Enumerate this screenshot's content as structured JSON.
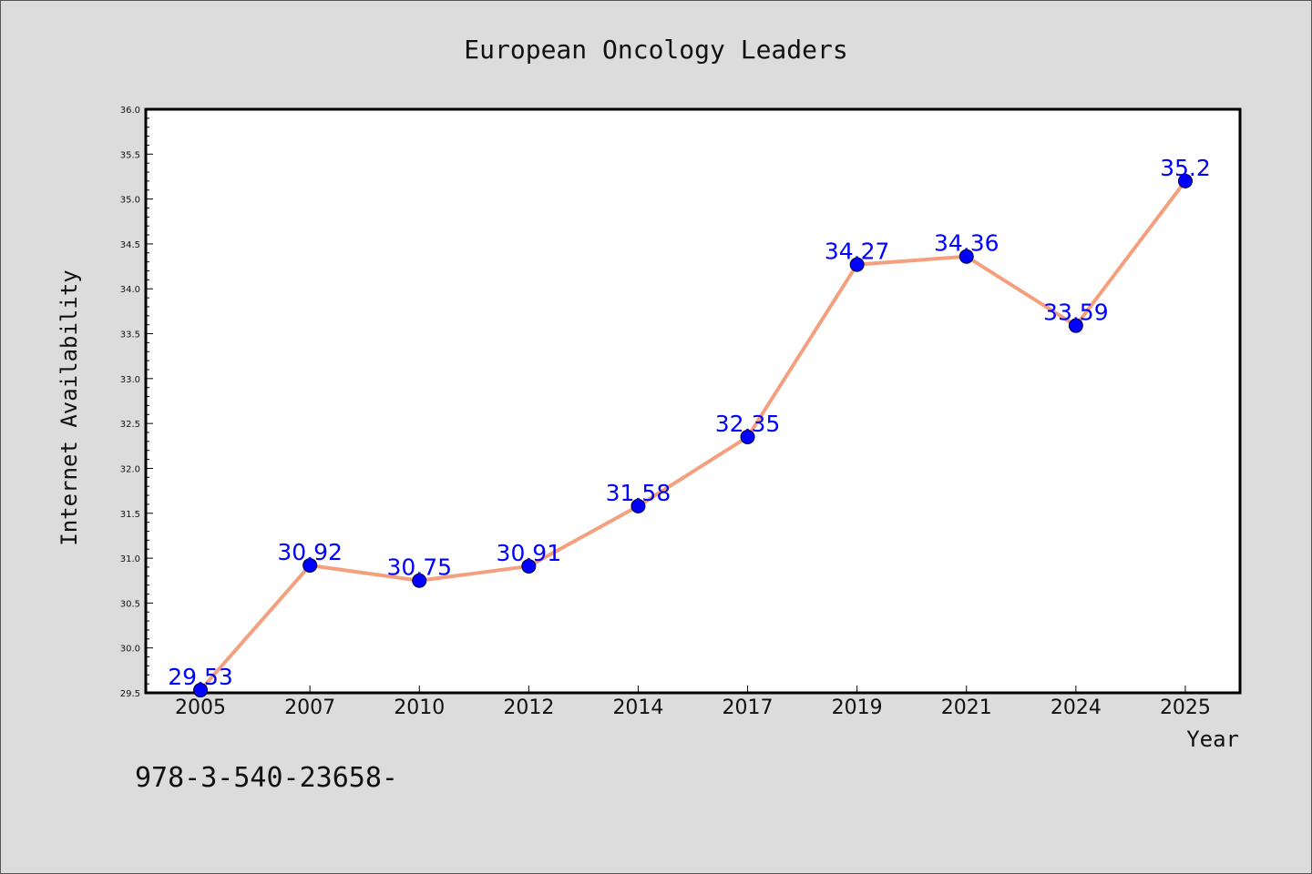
{
  "chart_data": {
    "type": "line",
    "title": "European Oncology Leaders",
    "xlabel": "Year",
    "ylabel": "Internet Availability",
    "categories": [
      "2005",
      "2007",
      "2010",
      "2012",
      "2014",
      "2017",
      "2019",
      "2021",
      "2024",
      "2025"
    ],
    "values": [
      29.53,
      30.92,
      30.75,
      30.91,
      31.58,
      32.35,
      34.27,
      34.36,
      33.59,
      35.2
    ],
    "data_labels": [
      "29.53",
      "30.92",
      "30.75",
      "30.91",
      "31.58",
      "32.35",
      "34.27",
      "34.36",
      "33.59",
      "35.2"
    ],
    "ylim": [
      29.5,
      36.0
    ],
    "yticks": [
      "29.5",
      "30.0",
      "30.5",
      "31.0",
      "31.5",
      "32.0",
      "32.5",
      "33.0",
      "33.5",
      "34.0",
      "34.5",
      "35.0",
      "35.5",
      "36.0"
    ],
    "grid": false,
    "line_color": "#f4a07f",
    "marker_color": "#0000ff",
    "label_color": "#0000ff"
  },
  "footer": "978-3-540-23658-"
}
